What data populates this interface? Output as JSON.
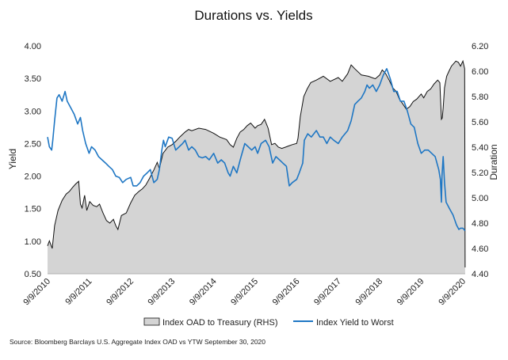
{
  "chart_data": {
    "type": "area",
    "title": "Durations vs. Yields",
    "ylabel_left": "Yield",
    "ylabel_right": "Duration",
    "left_axis": {
      "min": 0.5,
      "max": 4.0,
      "ticks": [
        "4.00",
        "3.50",
        "3.00",
        "2.50",
        "2.00",
        "1.50",
        "1.00",
        "0.50"
      ]
    },
    "right_axis": {
      "min": 4.4,
      "max": 6.2,
      "ticks": [
        "6.20",
        "6.00",
        "5.80",
        "5.60",
        "5.40",
        "5.20",
        "5.00",
        "4.80",
        "4.60",
        "4.40"
      ]
    },
    "x_ticks": [
      "9/9/2010",
      "9/9/2011",
      "9/9/2012",
      "9/9/2013",
      "9/9/2014",
      "9/9/2015",
      "9/9/2016",
      "9/9/2017",
      "9/9/2018",
      "9/9/2019",
      "9/9/2020"
    ],
    "x_range": [
      "2010-09-09",
      "2020-09-30"
    ],
    "grid": false,
    "legend_position": "bottom",
    "series": [
      {
        "name": "Index OAD to Treasury  (RHS)",
        "axis": "right",
        "style": "area",
        "color": "#d4d4d4",
        "edge_color": "#111111",
        "points": [
          [
            "2010-09-09",
            4.62
          ],
          [
            "2010-09-25",
            4.66
          ],
          [
            "2010-10-20",
            4.6
          ],
          [
            "2010-11-10",
            4.78
          ],
          [
            "2010-12-10",
            4.9
          ],
          [
            "2011-01-15",
            4.98
          ],
          [
            "2011-02-20",
            5.03
          ],
          [
            "2011-03-20",
            5.05
          ],
          [
            "2011-04-15",
            5.08
          ],
          [
            "2011-05-15",
            5.11
          ],
          [
            "2011-06-10",
            5.13
          ],
          [
            "2011-06-25",
            4.95
          ],
          [
            "2011-07-10",
            4.92
          ],
          [
            "2011-08-01",
            5.02
          ],
          [
            "2011-08-20",
            4.9
          ],
          [
            "2011-09-15",
            4.97
          ],
          [
            "2011-10-15",
            4.94
          ],
          [
            "2011-11-15",
            4.93
          ],
          [
            "2011-12-10",
            4.95
          ],
          [
            "2012-01-10",
            4.88
          ],
          [
            "2012-02-10",
            4.82
          ],
          [
            "2012-03-10",
            4.8
          ],
          [
            "2012-04-10",
            4.83
          ],
          [
            "2012-05-01",
            4.78
          ],
          [
            "2012-05-20",
            4.75
          ],
          [
            "2012-06-20",
            4.86
          ],
          [
            "2012-08-01",
            4.88
          ],
          [
            "2012-09-09",
            4.96
          ],
          [
            "2012-10-15",
            5.02
          ],
          [
            "2012-11-20",
            5.05
          ],
          [
            "2012-12-20",
            5.07
          ],
          [
            "2013-01-20",
            5.1
          ],
          [
            "2013-02-20",
            5.15
          ],
          [
            "2013-04-01",
            5.22
          ],
          [
            "2013-05-01",
            5.28
          ],
          [
            "2013-05-20",
            5.23
          ],
          [
            "2013-06-20",
            5.35
          ],
          [
            "2013-08-01",
            5.4
          ],
          [
            "2013-09-09",
            5.42
          ],
          [
            "2013-10-15",
            5.45
          ],
          [
            "2013-11-15",
            5.48
          ],
          [
            "2014-01-01",
            5.52
          ],
          [
            "2014-02-01",
            5.54
          ],
          [
            "2014-03-01",
            5.53
          ],
          [
            "2014-05-01",
            5.55
          ],
          [
            "2014-07-01",
            5.54
          ],
          [
            "2014-09-09",
            5.51
          ],
          [
            "2014-11-01",
            5.48
          ],
          [
            "2015-01-01",
            5.46
          ],
          [
            "2015-02-01",
            5.42
          ],
          [
            "2015-03-01",
            5.4
          ],
          [
            "2015-04-01",
            5.47
          ],
          [
            "2015-05-01",
            5.52
          ],
          [
            "2015-06-01",
            5.54
          ],
          [
            "2015-07-01",
            5.57
          ],
          [
            "2015-08-01",
            5.59
          ],
          [
            "2015-09-09",
            5.55
          ],
          [
            "2015-10-01",
            5.57
          ],
          [
            "2015-11-01",
            5.58
          ],
          [
            "2015-12-01",
            5.62
          ],
          [
            "2016-01-01",
            5.55
          ],
          [
            "2016-02-01",
            5.42
          ],
          [
            "2016-03-01",
            5.43
          ],
          [
            "2016-04-01",
            5.4
          ],
          [
            "2016-05-01",
            5.39
          ],
          [
            "2016-06-01",
            5.4
          ],
          [
            "2016-07-01",
            5.41
          ],
          [
            "2016-08-01",
            5.42
          ],
          [
            "2016-09-09",
            5.43
          ],
          [
            "2016-09-20",
            5.47
          ],
          [
            "2016-10-10",
            5.64
          ],
          [
            "2016-11-10",
            5.8
          ],
          [
            "2016-12-10",
            5.86
          ],
          [
            "2017-01-10",
            5.91
          ],
          [
            "2017-03-01",
            5.93
          ],
          [
            "2017-05-01",
            5.96
          ],
          [
            "2017-07-01",
            5.92
          ],
          [
            "2017-09-09",
            5.95
          ],
          [
            "2017-10-15",
            5.92
          ],
          [
            "2017-12-01",
            5.98
          ],
          [
            "2018-01-01",
            6.05
          ],
          [
            "2018-02-01",
            6.02
          ],
          [
            "2018-04-01",
            5.97
          ],
          [
            "2018-06-01",
            5.96
          ],
          [
            "2018-08-01",
            5.94
          ],
          [
            "2018-09-09",
            5.97
          ],
          [
            "2018-10-01",
            6.01
          ],
          [
            "2018-11-01",
            5.98
          ],
          [
            "2018-12-01",
            5.93
          ],
          [
            "2019-01-01",
            5.87
          ],
          [
            "2019-02-01",
            5.84
          ],
          [
            "2019-03-01",
            5.78
          ],
          [
            "2019-04-01",
            5.74
          ],
          [
            "2019-05-01",
            5.7
          ],
          [
            "2019-06-01",
            5.72
          ],
          [
            "2019-07-01",
            5.76
          ],
          [
            "2019-08-01",
            5.78
          ],
          [
            "2019-09-09",
            5.82
          ],
          [
            "2019-10-01",
            5.79
          ],
          [
            "2019-11-01",
            5.84
          ],
          [
            "2019-12-01",
            5.86
          ],
          [
            "2020-01-01",
            5.9
          ],
          [
            "2020-02-01",
            5.93
          ],
          [
            "2020-02-20",
            5.91
          ],
          [
            "2020-03-05",
            5.62
          ],
          [
            "2020-03-12",
            5.63
          ],
          [
            "2020-03-20",
            5.71
          ],
          [
            "2020-04-01",
            5.87
          ],
          [
            "2020-04-20",
            5.96
          ],
          [
            "2020-05-10",
            6.0
          ],
          [
            "2020-06-01",
            6.04
          ],
          [
            "2020-06-20",
            6.06
          ],
          [
            "2020-07-10",
            6.08
          ],
          [
            "2020-08-01",
            6.07
          ],
          [
            "2020-08-20",
            6.04
          ],
          [
            "2020-09-10",
            6.08
          ],
          [
            "2020-09-25",
            6.02
          ],
          [
            "2020-09-29",
            4.45
          ]
        ]
      },
      {
        "name": "Index Yield to Worst",
        "axis": "left",
        "style": "line",
        "color": "#1f77c4",
        "points": [
          [
            "2010-09-09",
            2.6
          ],
          [
            "2010-09-25",
            2.45
          ],
          [
            "2010-10-15",
            2.4
          ],
          [
            "2010-10-25",
            2.55
          ],
          [
            "2010-11-10",
            2.85
          ],
          [
            "2010-12-01",
            3.2
          ],
          [
            "2010-12-20",
            3.25
          ],
          [
            "2011-01-15",
            3.15
          ],
          [
            "2011-02-10",
            3.3
          ],
          [
            "2011-03-01",
            3.15
          ],
          [
            "2011-04-01",
            3.05
          ],
          [
            "2011-05-01",
            2.95
          ],
          [
            "2011-06-01",
            2.8
          ],
          [
            "2011-06-25",
            2.9
          ],
          [
            "2011-07-15",
            2.7
          ],
          [
            "2011-08-10",
            2.5
          ],
          [
            "2011-09-09",
            2.35
          ],
          [
            "2011-10-01",
            2.45
          ],
          [
            "2011-11-01",
            2.4
          ],
          [
            "2011-12-01",
            2.3
          ],
          [
            "2012-01-01",
            2.25
          ],
          [
            "2012-02-01",
            2.2
          ],
          [
            "2012-03-01",
            2.15
          ],
          [
            "2012-04-01",
            2.1
          ],
          [
            "2012-05-01",
            2.0
          ],
          [
            "2012-06-01",
            1.98
          ],
          [
            "2012-07-01",
            1.9
          ],
          [
            "2012-08-01",
            1.95
          ],
          [
            "2012-09-09",
            1.98
          ],
          [
            "2012-10-01",
            1.85
          ],
          [
            "2012-11-01",
            1.85
          ],
          [
            "2012-12-01",
            1.9
          ],
          [
            "2013-01-01",
            2.0
          ],
          [
            "2013-02-01",
            2.05
          ],
          [
            "2013-03-01",
            2.1
          ],
          [
            "2013-04-01",
            1.9
          ],
          [
            "2013-05-01",
            1.95
          ],
          [
            "2013-05-20",
            2.1
          ],
          [
            "2013-06-10",
            2.4
          ],
          [
            "2013-06-25",
            2.55
          ],
          [
            "2013-07-10",
            2.45
          ],
          [
            "2013-08-10",
            2.6
          ],
          [
            "2013-09-09",
            2.58
          ],
          [
            "2013-10-10",
            2.4
          ],
          [
            "2013-11-10",
            2.45
          ],
          [
            "2013-12-10",
            2.5
          ],
          [
            "2014-01-01",
            2.55
          ],
          [
            "2014-02-01",
            2.4
          ],
          [
            "2014-03-01",
            2.45
          ],
          [
            "2014-04-01",
            2.4
          ],
          [
            "2014-05-01",
            2.3
          ],
          [
            "2014-06-01",
            2.28
          ],
          [
            "2014-07-01",
            2.3
          ],
          [
            "2014-08-01",
            2.25
          ],
          [
            "2014-09-09",
            2.35
          ],
          [
            "2014-10-15",
            2.2
          ],
          [
            "2014-11-15",
            2.25
          ],
          [
            "2014-12-15",
            2.2
          ],
          [
            "2015-01-15",
            2.05
          ],
          [
            "2015-02-01",
            2.0
          ],
          [
            "2015-03-01",
            2.15
          ],
          [
            "2015-04-01",
            2.05
          ],
          [
            "2015-05-01",
            2.25
          ],
          [
            "2015-06-10",
            2.5
          ],
          [
            "2015-07-10",
            2.45
          ],
          [
            "2015-08-10",
            2.4
          ],
          [
            "2015-09-09",
            2.45
          ],
          [
            "2015-10-01",
            2.35
          ],
          [
            "2015-11-01",
            2.5
          ],
          [
            "2015-12-10",
            2.55
          ],
          [
            "2016-01-10",
            2.45
          ],
          [
            "2016-02-10",
            2.2
          ],
          [
            "2016-03-10",
            2.3
          ],
          [
            "2016-04-10",
            2.25
          ],
          [
            "2016-05-10",
            2.2
          ],
          [
            "2016-06-10",
            2.15
          ],
          [
            "2016-07-05",
            1.85
          ],
          [
            "2016-08-01",
            1.9
          ],
          [
            "2016-09-09",
            1.95
          ],
          [
            "2016-10-01",
            2.05
          ],
          [
            "2016-11-01",
            2.2
          ],
          [
            "2016-11-15",
            2.55
          ],
          [
            "2016-12-15",
            2.65
          ],
          [
            "2017-01-15",
            2.6
          ],
          [
            "2017-03-01",
            2.7
          ],
          [
            "2017-04-01",
            2.6
          ],
          [
            "2017-05-01",
            2.6
          ],
          [
            "2017-06-01",
            2.5
          ],
          [
            "2017-07-01",
            2.6
          ],
          [
            "2017-08-01",
            2.55
          ],
          [
            "2017-09-09",
            2.5
          ],
          [
            "2017-10-15",
            2.6
          ],
          [
            "2017-12-01",
            2.7
          ],
          [
            "2018-01-01",
            2.85
          ],
          [
            "2018-02-01",
            3.1
          ],
          [
            "2018-03-01",
            3.15
          ],
          [
            "2018-04-01",
            3.2
          ],
          [
            "2018-05-01",
            3.3
          ],
          [
            "2018-05-20",
            3.4
          ],
          [
            "2018-06-10",
            3.35
          ],
          [
            "2018-07-10",
            3.4
          ],
          [
            "2018-08-10",
            3.3
          ],
          [
            "2018-09-09",
            3.4
          ],
          [
            "2018-10-10",
            3.55
          ],
          [
            "2018-11-10",
            3.65
          ],
          [
            "2018-12-10",
            3.5
          ],
          [
            "2019-01-10",
            3.3
          ],
          [
            "2019-02-10",
            3.3
          ],
          [
            "2019-03-10",
            3.15
          ],
          [
            "2019-04-10",
            3.15
          ],
          [
            "2019-05-10",
            3.0
          ],
          [
            "2019-06-10",
            2.8
          ],
          [
            "2019-07-10",
            2.75
          ],
          [
            "2019-08-10",
            2.5
          ],
          [
            "2019-09-09",
            2.35
          ],
          [
            "2019-10-10",
            2.4
          ],
          [
            "2019-11-10",
            2.4
          ],
          [
            "2019-12-10",
            2.35
          ],
          [
            "2020-01-10",
            2.3
          ],
          [
            "2020-02-10",
            2.1
          ],
          [
            "2020-02-25",
            1.95
          ],
          [
            "2020-03-05",
            1.6
          ],
          [
            "2020-03-10",
            2.0
          ],
          [
            "2020-03-20",
            2.3
          ],
          [
            "2020-04-01",
            1.9
          ],
          [
            "2020-04-15",
            1.6
          ],
          [
            "2020-05-15",
            1.5
          ],
          [
            "2020-06-15",
            1.4
          ],
          [
            "2020-07-15",
            1.25
          ],
          [
            "2020-08-05",
            1.18
          ],
          [
            "2020-08-20",
            1.2
          ],
          [
            "2020-09-10",
            1.2
          ],
          [
            "2020-09-29",
            1.16
          ]
        ]
      }
    ],
    "source": "Source: Bloomberg Barclays U.S. Aggregate Index OAD vs YTW September 30, 2020"
  }
}
